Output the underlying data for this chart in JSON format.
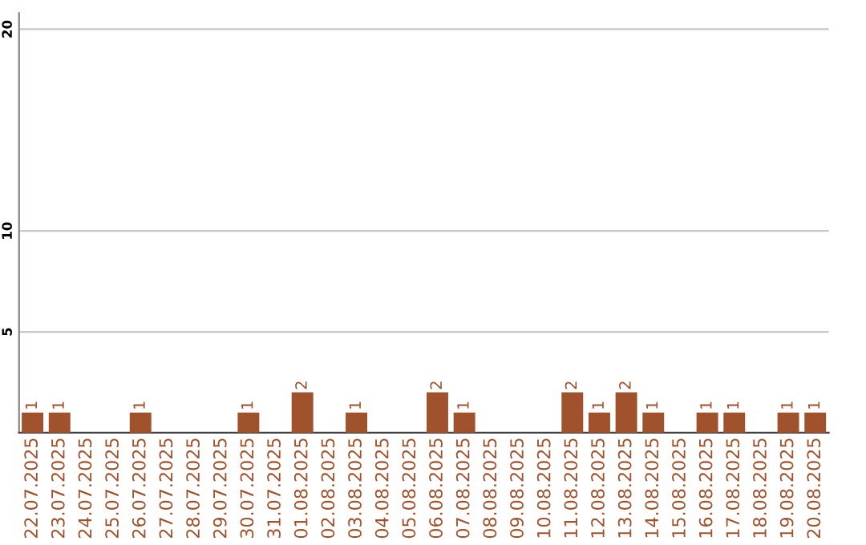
{
  "chart_data": {
    "type": "bar",
    "categories": [
      "22.07.2025",
      "23.07.2025",
      "24.07.2025",
      "25.07.2025",
      "26.07.2025",
      "27.07.2025",
      "28.07.2025",
      "29.07.2025",
      "30.07.2025",
      "31.07.2025",
      "01.08.2025",
      "02.08.2025",
      "03.08.2025",
      "04.08.2025",
      "05.08.2025",
      "06.08.2025",
      "07.08.2025",
      "08.08.2025",
      "09.08.2025",
      "10.08.2025",
      "11.08.2025",
      "12.08.2025",
      "13.08.2025",
      "14.08.2025",
      "15.08.2025",
      "16.08.2025",
      "17.08.2025",
      "18.08.2025",
      "19.08.2025",
      "20.08.2025"
    ],
    "values": [
      1,
      1,
      0,
      0,
      1,
      0,
      0,
      0,
      1,
      0,
      2,
      0,
      1,
      0,
      0,
      2,
      1,
      0,
      0,
      0,
      2,
      1,
      2,
      1,
      0,
      1,
      1,
      0,
      1,
      1
    ],
    "value_labels": [
      "1",
      "1",
      null,
      null,
      "1",
      null,
      null,
      null,
      "1",
      null,
      "2",
      null,
      "1",
      null,
      null,
      "2",
      "1",
      null,
      null,
      null,
      "2",
      "1",
      "2",
      "1",
      null,
      "1",
      "1",
      null,
      "1",
      "1"
    ],
    "color": "#a0522d",
    "ylim": [
      0,
      20.8
    ],
    "yticks": [
      5,
      10,
      20
    ],
    "grid": "y"
  }
}
